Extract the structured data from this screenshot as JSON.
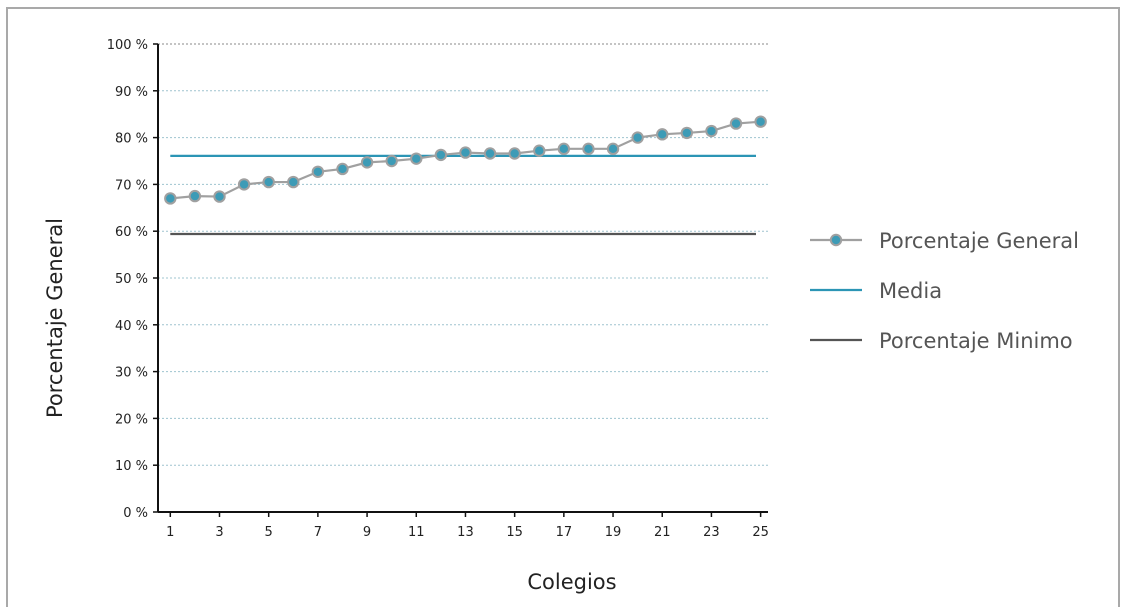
{
  "chart_data": {
    "type": "line",
    "xlabel": "Colegios",
    "ylabel": "Porcentaje General",
    "ylim": [
      0,
      100
    ],
    "xlim": [
      0.5,
      25.3
    ],
    "yticks": [
      "0 %",
      "10 %",
      "20 %",
      "30 %",
      "40 %",
      "50 %",
      "60 %",
      "70 %",
      "80 %",
      "90 %",
      "100 %"
    ],
    "xticks": [
      "1",
      "3",
      "5",
      "7",
      "9",
      "11",
      "13",
      "15",
      "17",
      "19",
      "21",
      "23",
      "25"
    ],
    "grid": true,
    "legend_position": "right",
    "series": [
      {
        "name": "Porcentaje General",
        "kind": "line-markers",
        "color": "#a0a0a0",
        "marker_fill": "#3d9bb6",
        "x": [
          1,
          2,
          3,
          4,
          5,
          6,
          7,
          8,
          9,
          10,
          11,
          12,
          13,
          14,
          15,
          16,
          17,
          18,
          19,
          20,
          21,
          22,
          23,
          24,
          25
        ],
        "values": [
          67,
          67.5,
          67.4,
          70,
          70.5,
          70.5,
          72.7,
          73.3,
          74.7,
          75,
          75.5,
          76.3,
          76.8,
          76.6,
          76.6,
          77.2,
          77.6,
          77.6,
          77.6,
          80,
          80.7,
          81,
          81.4,
          83,
          83.4
        ]
      },
      {
        "name": "Media",
        "kind": "hline",
        "color": "#2b95b5",
        "value": 76.1
      },
      {
        "name": "Porcentaje Minimo",
        "kind": "hline",
        "color": "#555555",
        "value": 59.4
      }
    ]
  }
}
